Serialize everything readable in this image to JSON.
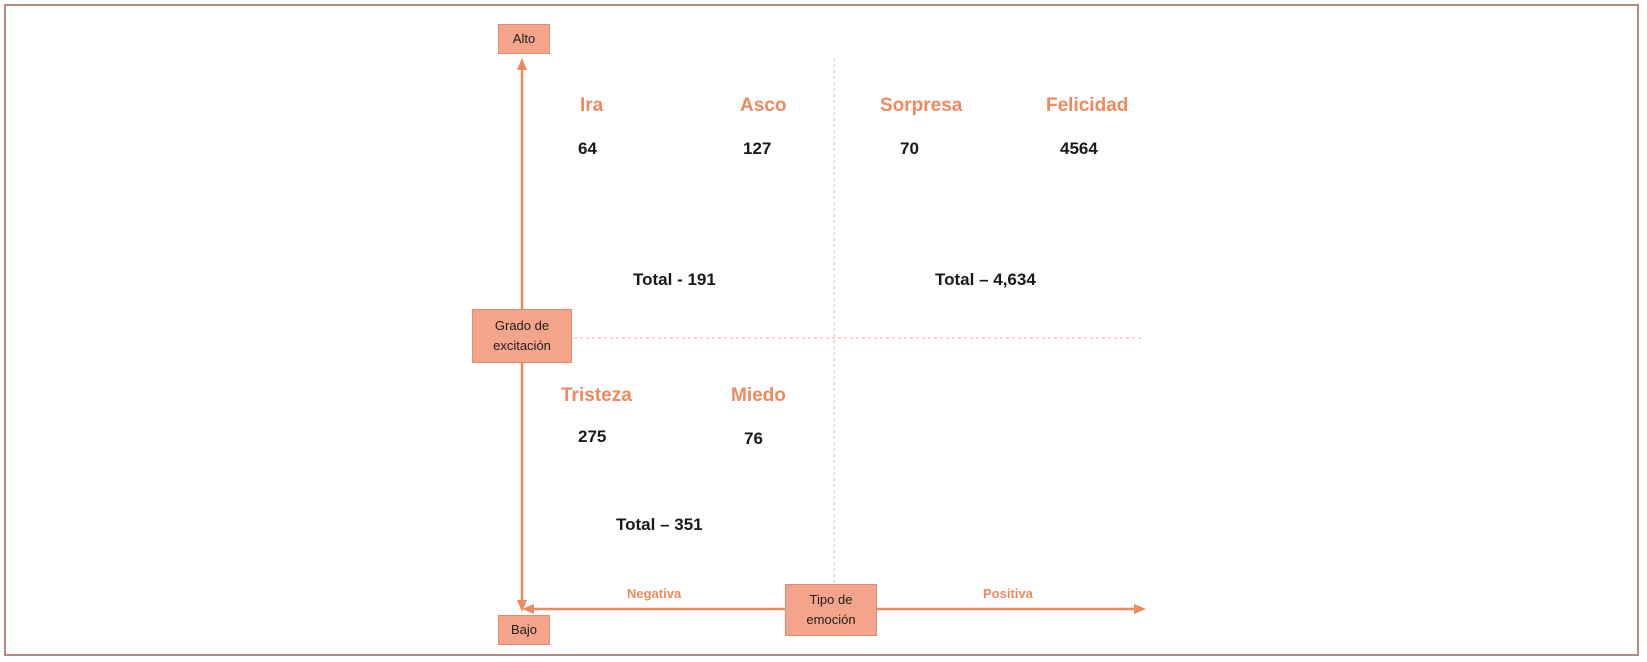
{
  "axes": {
    "vertical": {
      "title": "Grado de excitación",
      "top_label": "Alto",
      "bottom_label": "Bajo"
    },
    "horizontal": {
      "title_line1": "Tipo de",
      "title_line2": "emoción",
      "left_label": "Negativa",
      "right_label": "Positiva"
    }
  },
  "vertical_title_line1": "Grado de",
  "vertical_title_line2": "excitación",
  "quadrants": {
    "high_negative": {
      "emotions": [
        {
          "name": "Ira",
          "count": "64"
        },
        {
          "name": "Asco",
          "count": "127"
        }
      ],
      "total": "Total - 191"
    },
    "high_positive": {
      "emotions": [
        {
          "name": "Sorpresa",
          "count": "70"
        },
        {
          "name": "Felicidad",
          "count": "4564"
        }
      ],
      "total": "Total – 4,634"
    },
    "low_negative": {
      "emotions": [
        {
          "name": "Tristeza",
          "count": "275"
        },
        {
          "name": "Miedo",
          "count": "76"
        }
      ],
      "total": "Total – 351"
    }
  },
  "colors": {
    "accent": "#ee8a5e",
    "box_fill": "#f3a48a",
    "frame": "#b98a82"
  }
}
